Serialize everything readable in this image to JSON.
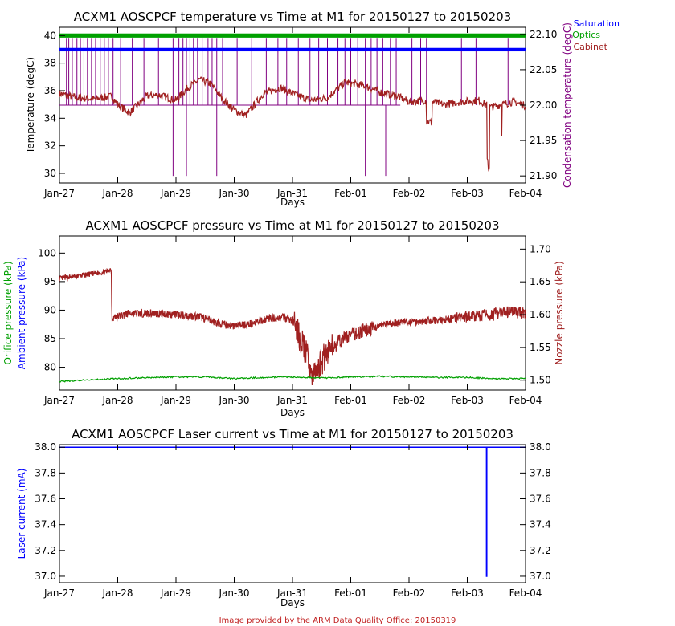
{
  "chart_data": [
    {
      "type": "line",
      "title": "ACXM1 AOSCPCF temperature vs Time at M1 for 20150127 to 20150203",
      "xlabel": "Days",
      "ylabel_left": "Temperature (degC)",
      "ylabel_right": "Condensation temperature (degC)",
      "x_ticks": [
        "Jan-27",
        "Jan-28",
        "Jan-29",
        "Jan-30",
        "Jan-31",
        "Feb-01",
        "Feb-02",
        "Feb-03",
        "Feb-04"
      ],
      "xlim": [
        0,
        8
      ],
      "ylim_left": [
        29.3,
        40.6
      ],
      "ylim_right": [
        21.89,
        22.11
      ],
      "y_ticks_left": [
        "30",
        "32",
        "34",
        "36",
        "38",
        "40"
      ],
      "y_ticks_right": [
        "21.90",
        "21.95",
        "22.00",
        "22.05",
        "22.10"
      ],
      "legend": [
        "Saturation",
        "Optics",
        "Cabinet"
      ],
      "legend_position": "top-right outside",
      "series": [
        {
          "name": "Optics",
          "color": "#00a000",
          "axis": "left",
          "x": [
            0,
            8
          ],
          "y": [
            40.0,
            40.0
          ]
        },
        {
          "name": "Saturation",
          "color": "#0000ff",
          "axis": "left",
          "x": [
            0,
            8
          ],
          "y": [
            39.0,
            39.0
          ]
        },
        {
          "name": "Cabinet",
          "color": "#a02020",
          "axis": "left",
          "x": [
            0,
            0.3,
            0.6,
            0.9,
            1.0,
            1.2,
            1.5,
            1.7,
            2.0,
            2.2,
            2.4,
            2.6,
            2.8,
            3.0,
            3.2,
            3.5,
            3.8,
            4.0,
            4.3,
            4.6,
            4.9,
            5.2,
            5.5,
            5.8,
            6.0,
            6.3,
            6.6,
            6.9,
            7.2,
            7.4,
            7.6,
            7.8,
            8.0
          ],
          "y": [
            35.8,
            35.5,
            35.4,
            35.6,
            35.0,
            34.4,
            35.6,
            35.7,
            35.3,
            36.2,
            36.8,
            36.5,
            35.4,
            34.6,
            34.2,
            35.8,
            36.2,
            35.8,
            35.3,
            35.5,
            36.6,
            36.4,
            35.9,
            35.6,
            35.2,
            35.3,
            35.0,
            35.2,
            35.3,
            34.8,
            35.0,
            35.2,
            34.9
          ]
        },
        {
          "name": "Condensation",
          "color": "#800080",
          "axis": "right",
          "x": [
            0,
            8
          ],
          "y": [
            22.0,
            22.0
          ]
        }
      ]
    },
    {
      "type": "line",
      "title": "ACXM1 AOSCPCF pressure vs Time at M1 for 20150127 to 20150203",
      "xlabel": "Days",
      "ylabel_left_1": "Orifice pressure (kPa)",
      "ylabel_left_2": "Ambient pressure (kPa)",
      "ylabel_right": "Nozzle pressure (kPa)",
      "x_ticks": [
        "Jan-27",
        "Jan-28",
        "Jan-29",
        "Jan-30",
        "Jan-31",
        "Feb-01",
        "Feb-02",
        "Feb-03",
        "Feb-04"
      ],
      "xlim": [
        0,
        8
      ],
      "ylim_left": [
        76,
        103
      ],
      "ylim_right": [
        1.485,
        1.72
      ],
      "y_ticks_left": [
        "80",
        "85",
        "90",
        "95",
        "100"
      ],
      "y_ticks_right": [
        "1.50",
        "1.55",
        "1.60",
        "1.65",
        "1.70"
      ],
      "series": [
        {
          "name": "Orifice pressure",
          "color": "#00a000",
          "axis": "left",
          "x": [
            0,
            0.5,
            1.0,
            1.5,
            2.0,
            2.5,
            3.0,
            3.5,
            4.0,
            4.5,
            5.0,
            5.5,
            6.0,
            6.5,
            7.0,
            7.5,
            8.0
          ],
          "y": [
            77.5,
            77.8,
            78.0,
            78.2,
            78.3,
            78.3,
            78.0,
            78.2,
            78.3,
            78.1,
            78.3,
            78.4,
            78.3,
            78.2,
            78.2,
            78.0,
            78.0
          ]
        },
        {
          "name": "Nozzle pressure",
          "color": "#a02020",
          "axis": "right",
          "x": [
            0,
            0.4,
            0.8,
            0.89,
            0.9,
            1.2,
            1.6,
            2.0,
            2.4,
            2.8,
            3.0,
            3.3,
            3.6,
            3.9,
            4.0,
            4.2,
            4.35,
            4.6,
            4.9,
            5.2,
            5.5,
            5.8,
            6.2,
            6.6,
            7.0,
            7.4,
            7.8,
            8.0
          ],
          "y": [
            1.655,
            1.66,
            1.665,
            1.67,
            1.595,
            1.602,
            1.602,
            1.6,
            1.597,
            1.585,
            1.583,
            1.586,
            1.595,
            1.595,
            1.59,
            1.55,
            1.505,
            1.545,
            1.565,
            1.575,
            1.583,
            1.588,
            1.59,
            1.592,
            1.597,
            1.6,
            1.605,
            1.602
          ]
        }
      ]
    },
    {
      "type": "line",
      "title": "ACXM1 AOSCPCF Laser current vs Time at M1 for 20150127 to 20150203",
      "xlabel": "Days",
      "ylabel_left": "Laser current (mA)",
      "x_ticks": [
        "Jan-27",
        "Jan-28",
        "Jan-29",
        "Jan-30",
        "Jan-31",
        "Feb-01",
        "Feb-02",
        "Feb-03",
        "Feb-04"
      ],
      "xlim": [
        0,
        8
      ],
      "ylim": [
        36.95,
        38.02
      ],
      "y_ticks": [
        "37.0",
        "37.2",
        "37.4",
        "37.6",
        "37.8",
        "38.0"
      ],
      "series": [
        {
          "name": "Laser current",
          "color": "#0000ff",
          "axis": "left",
          "x": [
            0,
            7.33,
            7.33,
            7.335,
            7.335,
            8.0
          ],
          "y": [
            38.0,
            38.0,
            37.0,
            37.0,
            38.0,
            38.0
          ]
        }
      ]
    }
  ],
  "footer": "Image provided by the ARM Data Quality Office: 20150319",
  "colors": {
    "optics": "#00a000",
    "saturation": "#0000ff",
    "cabinet": "#a02020",
    "condensation": "#800080",
    "footer": "#c02020"
  }
}
